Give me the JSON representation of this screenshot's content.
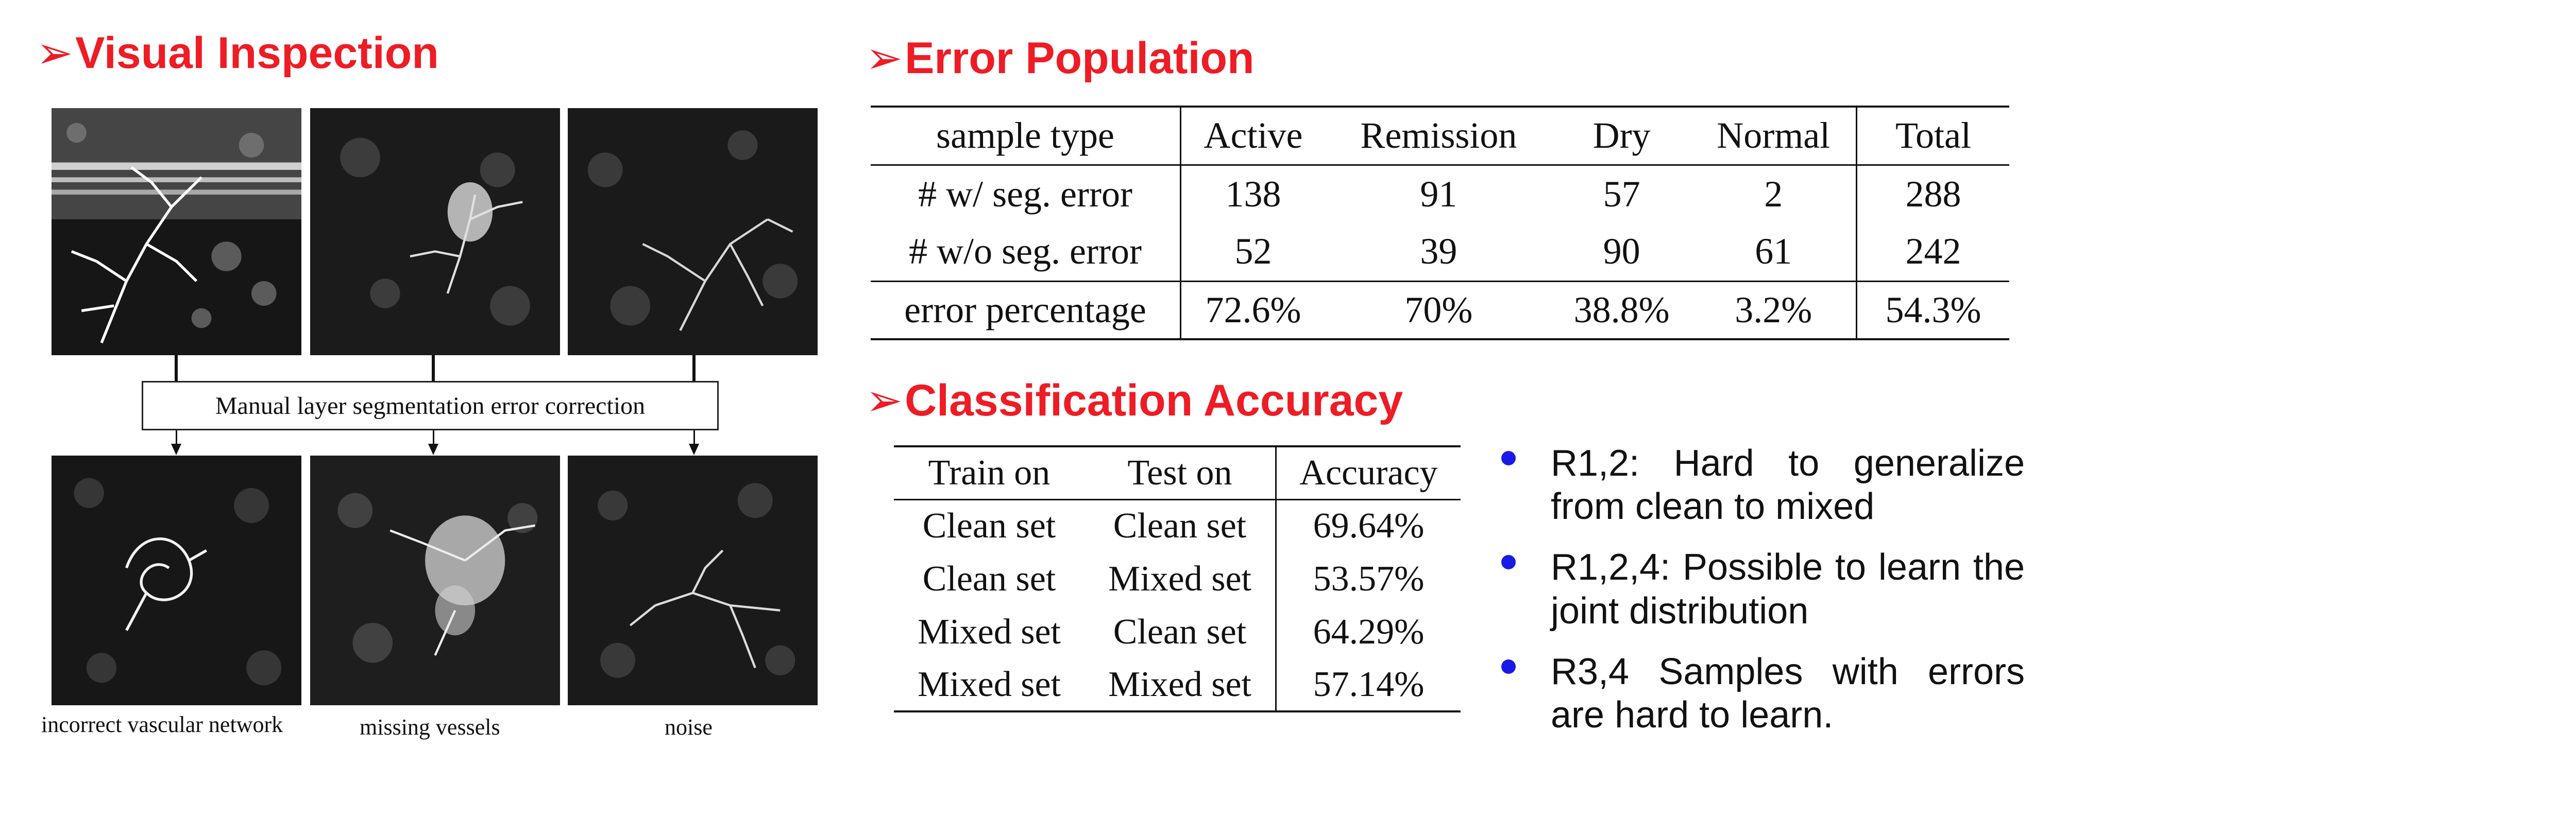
{
  "colors": {
    "heading_red": "#ee1c25",
    "bullet_blue": "#1a1ae6",
    "text": "#111111"
  },
  "visual_inspection": {
    "heading": "Visual Inspection",
    "arrow_glyph": "➢",
    "correction_box_label": "Manual layer segmentation error correction",
    "captions": [
      "incorrect vascular network",
      "missing vessels",
      "noise"
    ]
  },
  "error_population": {
    "heading": "Error Population",
    "arrow_glyph": "➢",
    "columns": [
      "sample type",
      "Active",
      "Remission",
      "Dry",
      "Normal",
      "Total"
    ],
    "rows": [
      [
        "# w/ seg. error",
        "138",
        "91",
        "57",
        "2",
        "288"
      ],
      [
        "# w/o seg. error",
        "52",
        "39",
        "90",
        "61",
        "242"
      ],
      [
        "error percentage",
        "72.6%",
        "70%",
        "38.8%",
        "3.2%",
        "54.3%"
      ]
    ]
  },
  "classification_accuracy": {
    "heading": "Classification Accuracy",
    "arrow_glyph": "➢",
    "columns": [
      "Train on",
      "Test on",
      "Accuracy"
    ],
    "rows": [
      [
        "Clean set",
        "Clean set",
        "69.64%"
      ],
      [
        "Clean set",
        "Mixed set",
        "53.57%"
      ],
      [
        "Mixed set",
        "Clean set",
        "64.29%"
      ],
      [
        "Mixed set",
        "Mixed set",
        "57.14%"
      ]
    ]
  },
  "findings": [
    "R1,2: Hard to generalize from clean to mixed",
    "R1,2,4: Possible to learn the joint distribution",
    "R3,4 Samples with errors are hard to learn."
  ]
}
